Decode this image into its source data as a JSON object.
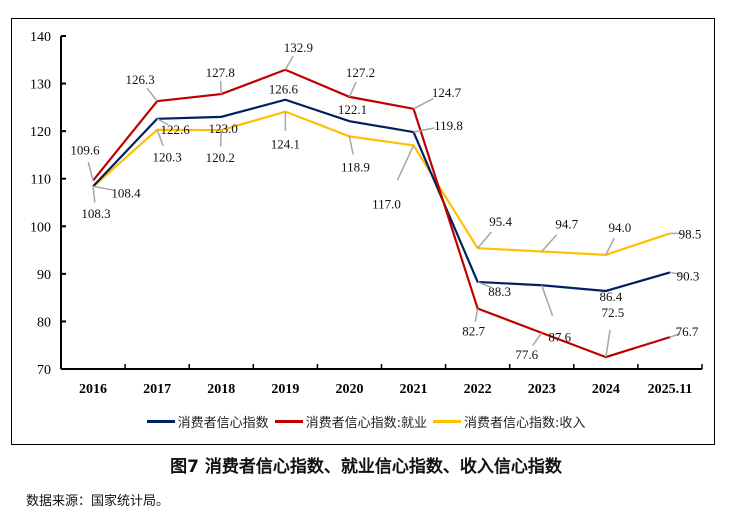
{
  "chart_data": {
    "type": "line",
    "title": "图7 消费者信心指数、就业信心指数、收入信心指数",
    "categories": [
      "2016",
      "2017",
      "2018",
      "2019",
      "2020",
      "2021",
      "2022",
      "2023",
      "2024",
      "2025.11"
    ],
    "ylim": [
      70,
      140
    ],
    "yticks": [
      70,
      80,
      90,
      100,
      110,
      120,
      130,
      140
    ],
    "grid": false,
    "legend": "bottom",
    "series": [
      {
        "name": "消费者信心指数",
        "color": "#002060",
        "values": [
          108.4,
          122.6,
          123.0,
          126.6,
          122.1,
          119.8,
          88.3,
          87.6,
          86.4,
          90.3
        ]
      },
      {
        "name": "消费者信心指数:就业",
        "color": "#C00000",
        "values": [
          109.6,
          126.3,
          127.8,
          132.9,
          127.2,
          124.7,
          82.7,
          77.6,
          72.5,
          76.7
        ]
      },
      {
        "name": "消费者信心指数:收入",
        "color": "#FFC000",
        "values": [
          108.3,
          120.3,
          120.2,
          124.1,
          118.9,
          117.0,
          95.4,
          94.7,
          94.0,
          98.5
        ]
      }
    ]
  },
  "source": "数据来源：国家统计局。"
}
